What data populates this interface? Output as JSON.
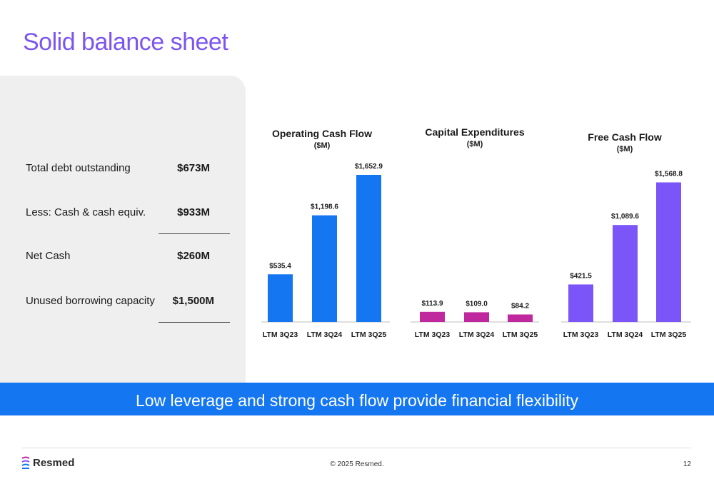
{
  "title": "Solid balance sheet",
  "balance": {
    "rows": [
      {
        "label": "Total debt outstanding",
        "value": "$673M"
      },
      {
        "label": "Less: Cash & cash equiv.",
        "value": "$933M"
      },
      {
        "label": "Net Cash",
        "value": "$260M"
      },
      {
        "label": "Unused borrowing capacity",
        "value": "$1,500M"
      }
    ]
  },
  "chart_data": [
    {
      "type": "bar",
      "title": "Operating Cash Flow",
      "subtitle": "($M)",
      "categories": [
        "LTM 3Q23",
        "LTM 3Q24",
        "LTM 3Q25"
      ],
      "values": [
        535.4,
        1198.6,
        1652.9
      ],
      "labels": [
        "$535.4",
        "$1,198.6",
        "$1,652.9"
      ],
      "color": "#1476f0"
    },
    {
      "type": "bar",
      "title": "Capital Expenditures",
      "subtitle": "($M)",
      "categories": [
        "LTM 3Q23",
        "LTM 3Q24",
        "LTM 3Q25"
      ],
      "values": [
        113.9,
        109.0,
        84.2
      ],
      "labels": [
        "$113.9",
        "$109.0",
        "$84.2"
      ],
      "color": "#c0299e"
    },
    {
      "type": "bar",
      "title": "Free Cash Flow",
      "subtitle": "($M)",
      "categories": [
        "LTM 3Q23",
        "LTM 3Q24",
        "LTM 3Q25"
      ],
      "values": [
        421.5,
        1089.6,
        1568.8
      ],
      "labels": [
        "$421.5",
        "$1,089.6",
        "$1,568.8"
      ],
      "color": "#7b55f8"
    }
  ],
  "banner": "Low leverage and strong cash flow provide financial flexibility",
  "footer": {
    "logo": "Resmed",
    "copyright": "© 2025 Resmed.",
    "page": "12"
  }
}
